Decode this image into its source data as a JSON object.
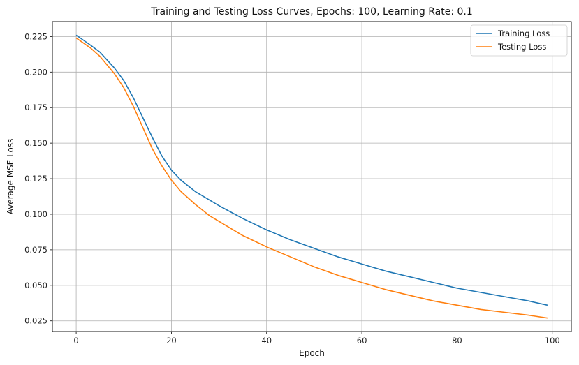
{
  "chart_data": {
    "type": "line",
    "title": "Training and Testing Loss Curves, Epochs: 100, Learning Rate: 0.1",
    "xlabel": "Epoch",
    "ylabel": "Average MSE Loss",
    "xlim": [
      -5,
      104
    ],
    "ylim": [
      0.0175,
      0.2355
    ],
    "xticks": [
      0,
      20,
      40,
      60,
      80,
      100
    ],
    "yticks": [
      0.025,
      0.05,
      0.075,
      0.1,
      0.125,
      0.15,
      0.175,
      0.2,
      0.225
    ],
    "ytick_labels": [
      "0.025",
      "0.050",
      "0.075",
      "0.100",
      "0.125",
      "0.150",
      "0.175",
      "0.200",
      "0.225"
    ],
    "grid": true,
    "legend_position": "top-right",
    "series": [
      {
        "name": "Training Loss",
        "color": "#1f77b4",
        "points": [
          [
            0,
            0.226
          ],
          [
            3,
            0.219
          ],
          [
            5,
            0.214
          ],
          [
            8,
            0.203
          ],
          [
            10,
            0.194
          ],
          [
            12,
            0.182
          ],
          [
            14,
            0.168
          ],
          [
            16,
            0.154
          ],
          [
            18,
            0.141
          ],
          [
            20,
            0.131
          ],
          [
            22,
            0.124
          ],
          [
            25,
            0.116
          ],
          [
            28,
            0.11
          ],
          [
            30,
            0.106
          ],
          [
            35,
            0.097
          ],
          [
            40,
            0.089
          ],
          [
            45,
            0.082
          ],
          [
            50,
            0.076
          ],
          [
            55,
            0.07
          ],
          [
            60,
            0.065
          ],
          [
            65,
            0.06
          ],
          [
            70,
            0.056
          ],
          [
            75,
            0.052
          ],
          [
            80,
            0.048
          ],
          [
            85,
            0.045
          ],
          [
            90,
            0.042
          ],
          [
            95,
            0.039
          ],
          [
            99,
            0.036
          ]
        ]
      },
      {
        "name": "Testing Loss",
        "color": "#ff7f0e",
        "points": [
          [
            0,
            0.224
          ],
          [
            3,
            0.217
          ],
          [
            5,
            0.211
          ],
          [
            8,
            0.199
          ],
          [
            10,
            0.189
          ],
          [
            12,
            0.176
          ],
          [
            14,
            0.161
          ],
          [
            16,
            0.146
          ],
          [
            18,
            0.134
          ],
          [
            20,
            0.124
          ],
          [
            22,
            0.116
          ],
          [
            25,
            0.107
          ],
          [
            28,
            0.099
          ],
          [
            30,
            0.095
          ],
          [
            35,
            0.085
          ],
          [
            40,
            0.077
          ],
          [
            45,
            0.07
          ],
          [
            50,
            0.063
          ],
          [
            55,
            0.057
          ],
          [
            60,
            0.052
          ],
          [
            65,
            0.047
          ],
          [
            70,
            0.043
          ],
          [
            75,
            0.039
          ],
          [
            80,
            0.036
          ],
          [
            85,
            0.033
          ],
          [
            90,
            0.031
          ],
          [
            95,
            0.029
          ],
          [
            99,
            0.027
          ]
        ]
      }
    ]
  }
}
